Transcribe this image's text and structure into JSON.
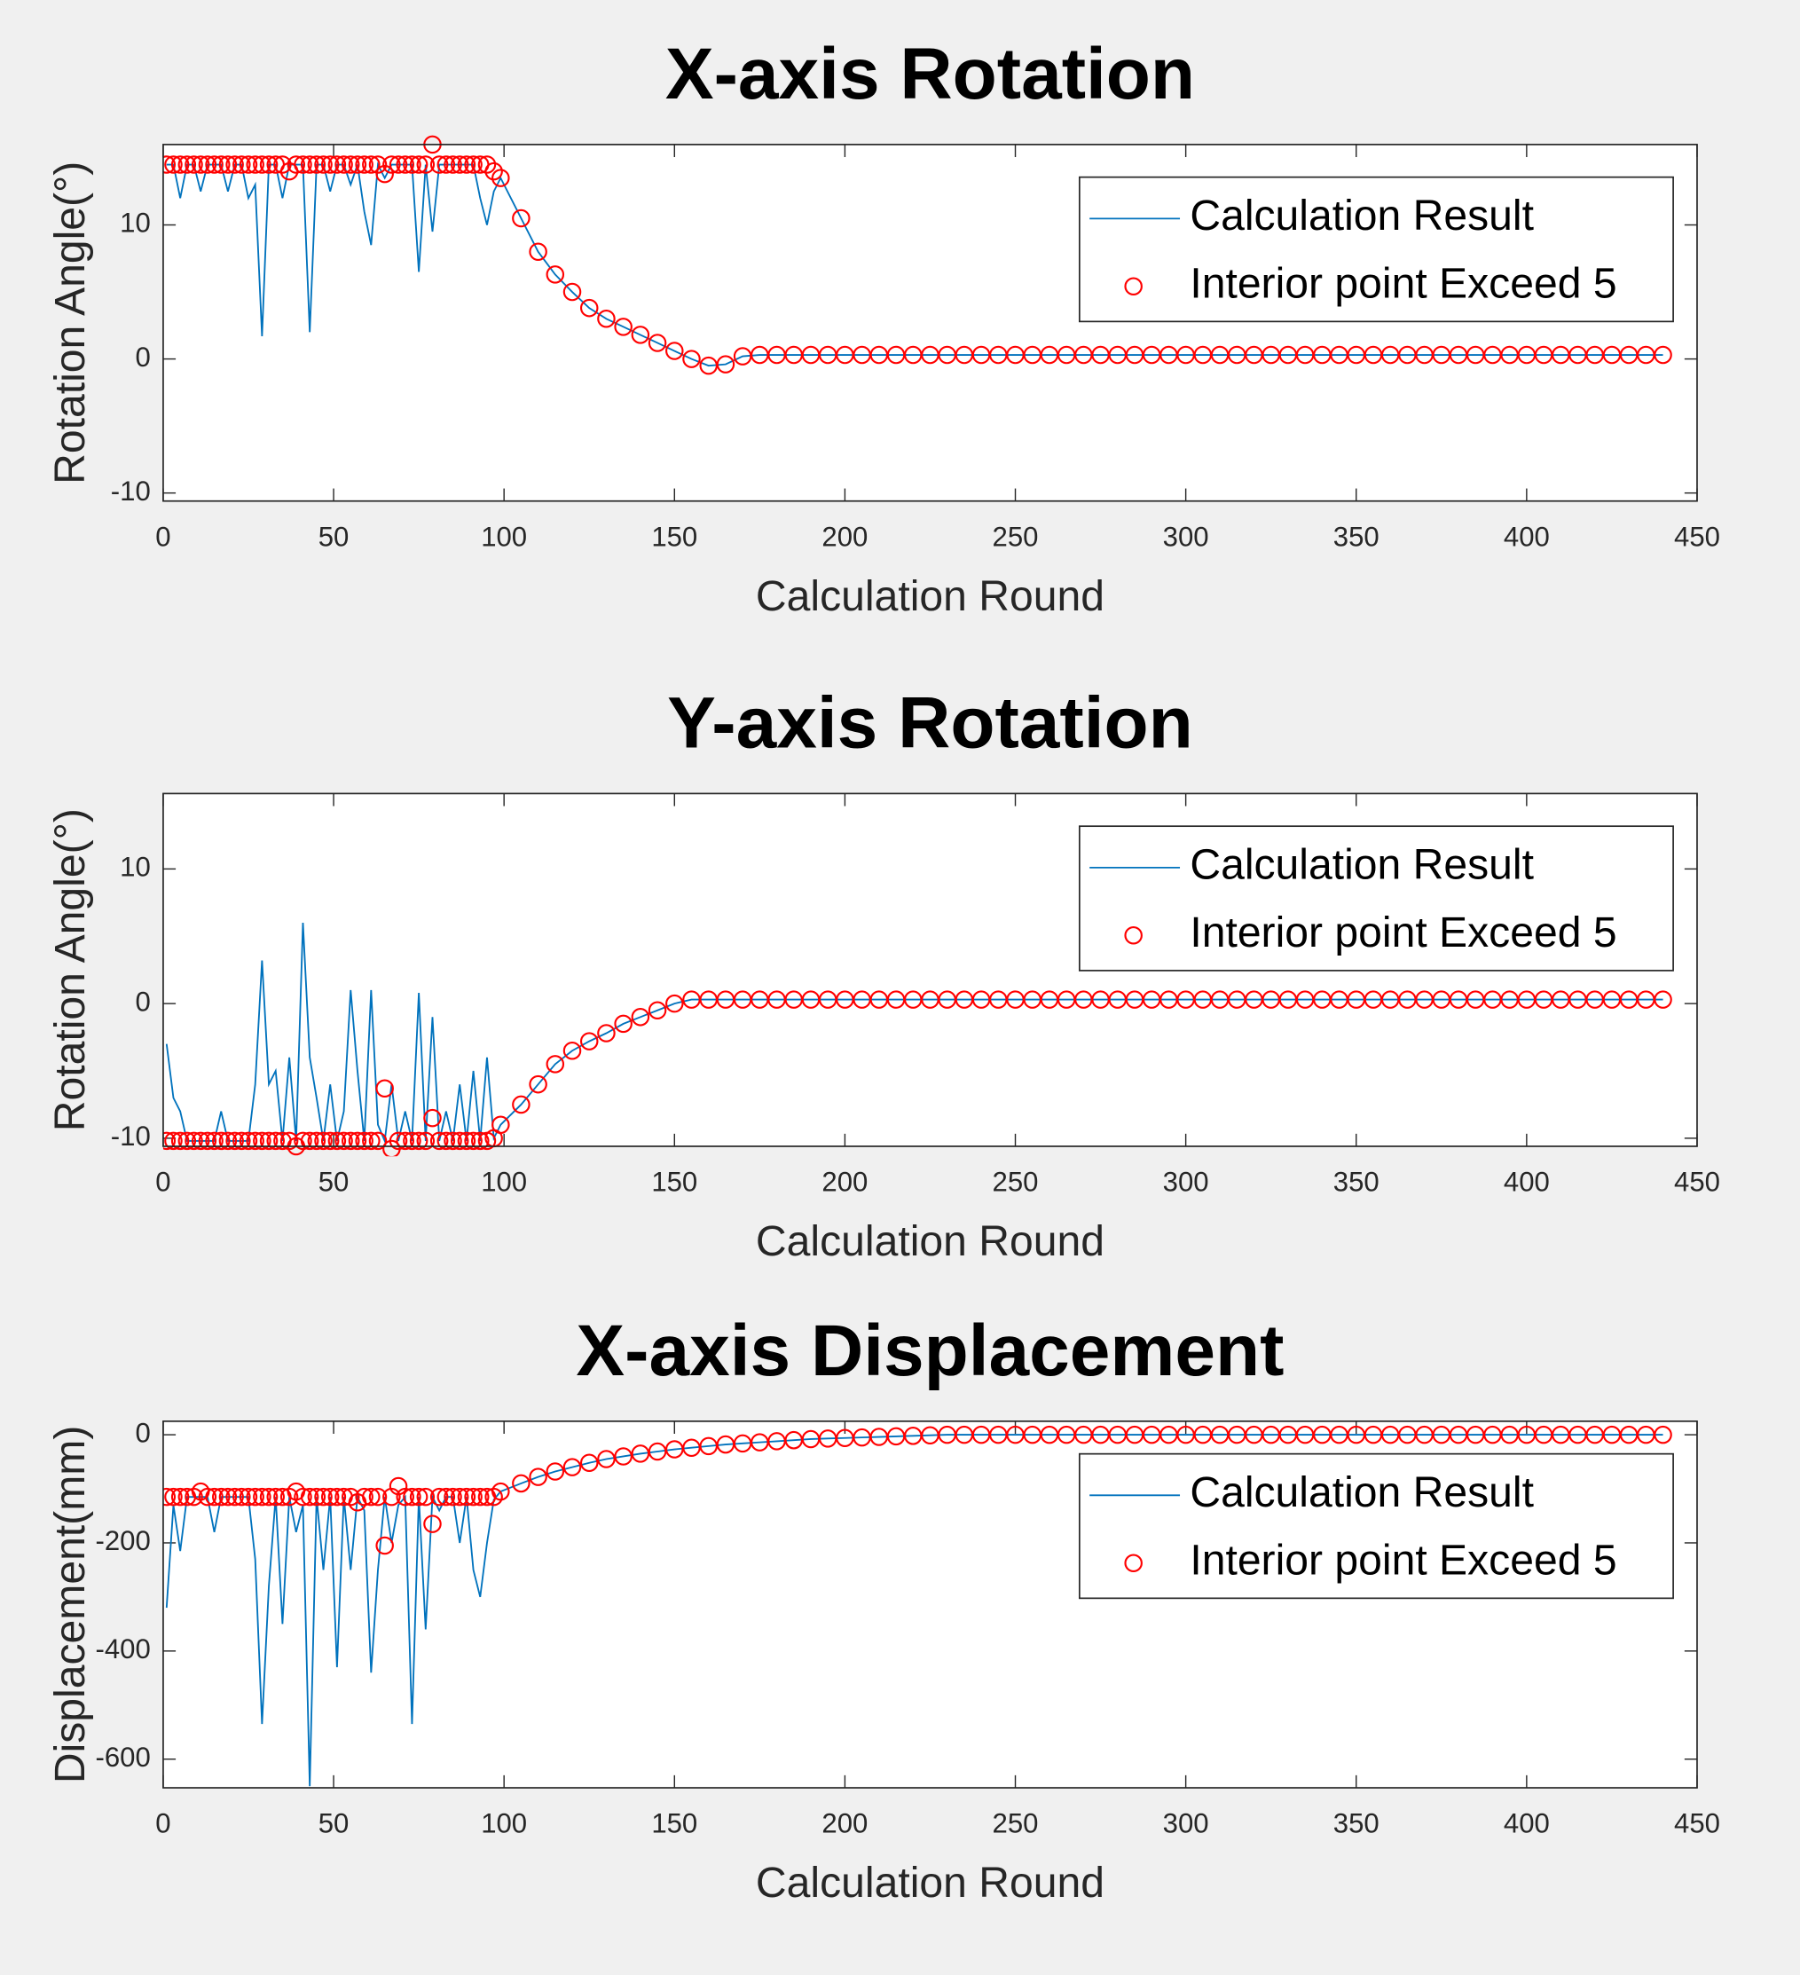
{
  "chart_data": [
    {
      "type": "line",
      "title": "X-axis Rotation",
      "xlabel": "Calculation Round",
      "ylabel": "Rotation Angle(°)",
      "xlim": [
        0,
        450
      ],
      "xticks": [
        0,
        50,
        100,
        150,
        200,
        250,
        300,
        350,
        400,
        450
      ],
      "ylim": [
        -10.6,
        16
      ],
      "yticks": [
        -10,
        0,
        10
      ],
      "legend": "upper right",
      "x": [
        1,
        3,
        5,
        7,
        9,
        11,
        13,
        15,
        17,
        19,
        21,
        23,
        25,
        27,
        29,
        31,
        33,
        35,
        37,
        39,
        41,
        43,
        45,
        47,
        49,
        51,
        53,
        55,
        57,
        59,
        61,
        63,
        65,
        67,
        69,
        71,
        73,
        75,
        77,
        79,
        81,
        83,
        85,
        87,
        89,
        91,
        93,
        95,
        97,
        99,
        105,
        110,
        115,
        120,
        125,
        130,
        135,
        140,
        145,
        150,
        155,
        160,
        165,
        170,
        175,
        180,
        185,
        190,
        195,
        200,
        205,
        210,
        215,
        220,
        225,
        230,
        235,
        240,
        245,
        250,
        255,
        260,
        265,
        270,
        275,
        280,
        285,
        290,
        295,
        300,
        305,
        310,
        315,
        320,
        325,
        330,
        335,
        340,
        345,
        350,
        355,
        360,
        365,
        370,
        375,
        380,
        385,
        390,
        395,
        400,
        405,
        410,
        415,
        420,
        425,
        430,
        435,
        440
      ],
      "series": [
        {
          "name": "Calculation Result",
          "type": "line",
          "color": "#0072bd",
          "values": [
            14.5,
            14.5,
            12,
            14.5,
            14.5,
            12.5,
            14.5,
            14.5,
            14.5,
            12.5,
            14.5,
            14.5,
            12,
            13,
            1.7,
            14.5,
            14.5,
            12,
            14.5,
            14.5,
            14.5,
            2,
            14.5,
            14.5,
            12.5,
            14.5,
            14.5,
            13,
            14.5,
            11,
            8.5,
            14.5,
            13.5,
            14.5,
            14.5,
            14.5,
            14.5,
            6.5,
            14.5,
            9.5,
            14.5,
            14.5,
            14.5,
            14.5,
            14.5,
            14.5,
            12,
            10,
            12.5,
            13.5,
            10.5,
            8,
            6.3,
            5,
            3.8,
            3,
            2.4,
            1.8,
            1.2,
            0.6,
            0,
            -0.5,
            -0.4,
            0.2,
            0.3,
            0.3,
            0.3,
            0.3,
            0.3,
            0.3,
            0.3,
            0.3,
            0.3,
            0.3,
            0.3,
            0.3,
            0.3,
            0.3,
            0.3,
            0.3,
            0.3,
            0.3,
            0.3,
            0.3,
            0.3,
            0.3,
            0.3,
            0.3,
            0.3,
            0.3,
            0.3,
            0.3,
            0.3,
            0.3,
            0.3,
            0.3,
            0.3,
            0.3,
            0.3,
            0.3,
            0.3,
            0.3,
            0.3,
            0.3,
            0.3,
            0.3,
            0.3,
            0.3,
            0.3,
            0.3,
            0.3,
            0.3,
            0.3,
            0.3,
            0.3,
            0.3,
            0.3,
            0.3
          ]
        },
        {
          "name": "Interior point Exceed 5",
          "type": "scatter",
          "color": "#ff0000",
          "values": [
            14.5,
            14.5,
            14.5,
            14.5,
            14.5,
            14.5,
            14.5,
            14.5,
            14.5,
            14.5,
            14.5,
            14.5,
            14.5,
            14.5,
            14.5,
            14.5,
            14.5,
            14.5,
            14,
            14.5,
            14.5,
            14.5,
            14.5,
            14.5,
            14.5,
            14.5,
            14.5,
            14.5,
            14.5,
            14.5,
            14.5,
            14.5,
            13.8,
            14.5,
            14.5,
            14.5,
            14.5,
            14.5,
            14.5,
            16,
            14.5,
            14.5,
            14.5,
            14.5,
            14.5,
            14.5,
            14.5,
            14.5,
            14,
            13.5,
            10.5,
            8,
            6.3,
            5,
            3.8,
            3,
            2.4,
            1.8,
            1.2,
            0.6,
            0,
            -0.5,
            -0.4,
            0.2,
            0.3,
            0.3,
            0.3,
            0.3,
            0.3,
            0.3,
            0.3,
            0.3,
            0.3,
            0.3,
            0.3,
            0.3,
            0.3,
            0.3,
            0.3,
            0.3,
            0.3,
            0.3,
            0.3,
            0.3,
            0.3,
            0.3,
            0.3,
            0.3,
            0.3,
            0.3,
            0.3,
            0.3,
            0.3,
            0.3,
            0.3,
            0.3,
            0.3,
            0.3,
            0.3,
            0.3,
            0.3,
            0.3,
            0.3,
            0.3,
            0.3,
            0.3,
            0.3,
            0.3,
            0.3,
            0.3,
            0.3,
            0.3,
            0.3,
            0.3,
            0.3,
            0.3,
            0.3,
            0.3
          ]
        }
      ]
    },
    {
      "type": "line",
      "title": "Y-axis Rotation",
      "xlabel": "Calculation Round",
      "ylabel": "Rotation Angle(°)",
      "xlim": [
        0,
        450
      ],
      "xticks": [
        0,
        50,
        100,
        150,
        200,
        250,
        300,
        350,
        400,
        450
      ],
      "ylim": [
        -10.6,
        15.6
      ],
      "yticks": [
        -10,
        0,
        10
      ],
      "legend": "upper right",
      "x": [
        1,
        3,
        5,
        7,
        9,
        11,
        13,
        15,
        17,
        19,
        21,
        23,
        25,
        27,
        29,
        31,
        33,
        35,
        37,
        39,
        41,
        43,
        45,
        47,
        49,
        51,
        53,
        55,
        57,
        59,
        61,
        63,
        65,
        67,
        69,
        71,
        73,
        75,
        77,
        79,
        81,
        83,
        85,
        87,
        89,
        91,
        93,
        95,
        97,
        99,
        105,
        110,
        115,
        120,
        125,
        130,
        135,
        140,
        145,
        150,
        155,
        160,
        165,
        170,
        175,
        180,
        185,
        190,
        195,
        200,
        205,
        210,
        215,
        220,
        225,
        230,
        235,
        240,
        245,
        250,
        255,
        260,
        265,
        270,
        275,
        280,
        285,
        290,
        295,
        300,
        305,
        310,
        315,
        320,
        325,
        330,
        335,
        340,
        345,
        350,
        355,
        360,
        365,
        370,
        375,
        380,
        385,
        390,
        395,
        400,
        405,
        410,
        415,
        420,
        425,
        430,
        435,
        440
      ],
      "series": [
        {
          "name": "Calculation Result",
          "type": "line",
          "color": "#0072bd",
          "values": [
            -3,
            -7,
            -8,
            -10.2,
            -10.2,
            -10.2,
            -10.2,
            -10.2,
            -8,
            -10.2,
            -10.2,
            -10.2,
            -10.2,
            -6,
            3.2,
            -6,
            -5,
            -10.2,
            -4,
            -10.2,
            6,
            -4,
            -7,
            -10.2,
            -6,
            -10.2,
            -8,
            1,
            -5,
            -10.2,
            1,
            -9,
            -10.2,
            -6,
            -10.2,
            -8,
            -10.2,
            0.8,
            -10.2,
            -1,
            -10.2,
            -8,
            -10.2,
            -6,
            -10.2,
            -5,
            -10.2,
            -4,
            -10,
            -9,
            -7.5,
            -6,
            -4.5,
            -3.5,
            -2.8,
            -2.2,
            -1.5,
            -1,
            -0.5,
            0,
            0.3,
            0.3,
            0.3,
            0.3,
            0.3,
            0.3,
            0.3,
            0.3,
            0.3,
            0.3,
            0.3,
            0.3,
            0.3,
            0.3,
            0.3,
            0.3,
            0.3,
            0.3,
            0.3,
            0.3,
            0.3,
            0.3,
            0.3,
            0.3,
            0.3,
            0.3,
            0.3,
            0.3,
            0.3,
            0.3,
            0.3,
            0.3,
            0.3,
            0.3,
            0.3,
            0.3,
            0.3,
            0.3,
            0.3,
            0.3,
            0.3,
            0.3,
            0.3,
            0.3,
            0.3,
            0.3,
            0.3,
            0.3,
            0.3,
            0.3,
            0.3,
            0.3,
            0.3,
            0.3,
            0.3,
            0.3,
            0.3,
            0.3
          ]
        },
        {
          "name": "Interior point Exceed 5",
          "type": "scatter",
          "color": "#ff0000",
          "values": [
            -10.2,
            -10.2,
            -10.2,
            -10.2,
            -10.2,
            -10.2,
            -10.2,
            -10.2,
            -10.2,
            -10.2,
            -10.2,
            -10.2,
            -10.2,
            -10.2,
            -10.2,
            -10.2,
            -10.2,
            -10.2,
            -10.2,
            -10.6,
            -10.2,
            -10.2,
            -10.2,
            -10.2,
            -10.2,
            -10.2,
            -10.2,
            -10.2,
            -10.2,
            -10.2,
            -10.2,
            -10.2,
            -6.3,
            -10.8,
            -10.2,
            -10.2,
            -10.2,
            -10.2,
            -10.2,
            -8.5,
            -10.2,
            -10.2,
            -10.2,
            -10.2,
            -10.2,
            -10.2,
            -10.2,
            -10.2,
            -10,
            -9,
            -7.5,
            -6,
            -4.5,
            -3.5,
            -2.8,
            -2.2,
            -1.5,
            -1,
            -0.5,
            0,
            0.3,
            0.3,
            0.3,
            0.3,
            0.3,
            0.3,
            0.3,
            0.3,
            0.3,
            0.3,
            0.3,
            0.3,
            0.3,
            0.3,
            0.3,
            0.3,
            0.3,
            0.3,
            0.3,
            0.3,
            0.3,
            0.3,
            0.3,
            0.3,
            0.3,
            0.3,
            0.3,
            0.3,
            0.3,
            0.3,
            0.3,
            0.3,
            0.3,
            0.3,
            0.3,
            0.3,
            0.3,
            0.3,
            0.3,
            0.3,
            0.3,
            0.3,
            0.3,
            0.3,
            0.3,
            0.3,
            0.3,
            0.3,
            0.3,
            0.3,
            0.3,
            0.3,
            0.3,
            0.3,
            0.3,
            0.3,
            0.3,
            0.3
          ]
        }
      ]
    },
    {
      "type": "line",
      "title": "X-axis Displacement",
      "xlabel": "Calculation Round",
      "ylabel": "Displacement(mm)",
      "xlim": [
        0,
        450
      ],
      "xticks": [
        0,
        50,
        100,
        150,
        200,
        250,
        300,
        350,
        400,
        450
      ],
      "ylim": [
        -653,
        25
      ],
      "yticks": [
        -600,
        -400,
        -200,
        0
      ],
      "legend": "upper right",
      "x": [
        1,
        3,
        5,
        7,
        9,
        11,
        13,
        15,
        17,
        19,
        21,
        23,
        25,
        27,
        29,
        31,
        33,
        35,
        37,
        39,
        41,
        43,
        45,
        47,
        49,
        51,
        53,
        55,
        57,
        59,
        61,
        63,
        65,
        67,
        69,
        71,
        73,
        75,
        77,
        79,
        81,
        83,
        85,
        87,
        89,
        91,
        93,
        95,
        97,
        99,
        105,
        110,
        115,
        120,
        125,
        130,
        135,
        140,
        145,
        150,
        155,
        160,
        165,
        170,
        175,
        180,
        185,
        190,
        195,
        200,
        205,
        210,
        215,
        220,
        225,
        230,
        235,
        240,
        245,
        250,
        255,
        260,
        265,
        270,
        275,
        280,
        285,
        290,
        295,
        300,
        305,
        310,
        315,
        320,
        325,
        330,
        335,
        340,
        345,
        350,
        355,
        360,
        365,
        370,
        375,
        380,
        385,
        390,
        395,
        400,
        405,
        410,
        415,
        420,
        425,
        430,
        435,
        440
      ],
      "series": [
        {
          "name": "Calculation Result",
          "type": "line",
          "color": "#0072bd",
          "values": [
            -320,
            -130,
            -215,
            -115,
            -115,
            -115,
            -115,
            -180,
            -115,
            -115,
            -115,
            -115,
            -115,
            -230,
            -535,
            -280,
            -115,
            -350,
            -115,
            -180,
            -130,
            -650,
            -115,
            -250,
            -115,
            -430,
            -115,
            -250,
            -115,
            -140,
            -440,
            -250,
            -115,
            -200,
            -130,
            -115,
            -535,
            -115,
            -360,
            -115,
            -140,
            -115,
            -115,
            -200,
            -115,
            -250,
            -300,
            -200,
            -120,
            -105,
            -90,
            -78,
            -68,
            -60,
            -52,
            -45,
            -40,
            -35,
            -31,
            -27,
            -24,
            -21,
            -18,
            -16,
            -14,
            -12,
            -10,
            -8,
            -7,
            -6,
            -5,
            -4,
            -3,
            -2,
            -1,
            0,
            0,
            0,
            0,
            0,
            0,
            0,
            0,
            0,
            0,
            0,
            0,
            0,
            0,
            0,
            0,
            0,
            0,
            0,
            0,
            0,
            0,
            0,
            0,
            0,
            0,
            0,
            0,
            0,
            0,
            0,
            0,
            0,
            0,
            0,
            0,
            0,
            0,
            0,
            0,
            0,
            0,
            0
          ]
        },
        {
          "name": "Interior point Exceed 5",
          "type": "scatter",
          "color": "#ff0000",
          "values": [
            -115,
            -115,
            -115,
            -115,
            -115,
            -105,
            -115,
            -115,
            -115,
            -115,
            -115,
            -115,
            -115,
            -115,
            -115,
            -115,
            -115,
            -115,
            -115,
            -105,
            -115,
            -115,
            -115,
            -115,
            -115,
            -115,
            -115,
            -115,
            -125,
            -115,
            -115,
            -115,
            -205,
            -115,
            -95,
            -115,
            -115,
            -115,
            -115,
            -165,
            -115,
            -115,
            -115,
            -115,
            -115,
            -115,
            -115,
            -115,
            -115,
            -105,
            -90,
            -78,
            -68,
            -60,
            -52,
            -45,
            -40,
            -35,
            -31,
            -27,
            -24,
            -21,
            -18,
            -16,
            -14,
            -12,
            -10,
            -8,
            -7,
            -6,
            -5,
            -4,
            -3,
            -2,
            -1,
            0,
            0,
            0,
            0,
            0,
            0,
            0,
            0,
            0,
            0,
            0,
            0,
            0,
            0,
            0,
            0,
            0,
            0,
            0,
            0,
            0,
            0,
            0,
            0,
            0,
            0,
            0,
            0,
            0,
            0,
            0,
            0,
            0,
            0,
            0,
            0,
            0,
            0,
            0,
            0,
            0,
            0,
            0
          ]
        }
      ]
    }
  ]
}
